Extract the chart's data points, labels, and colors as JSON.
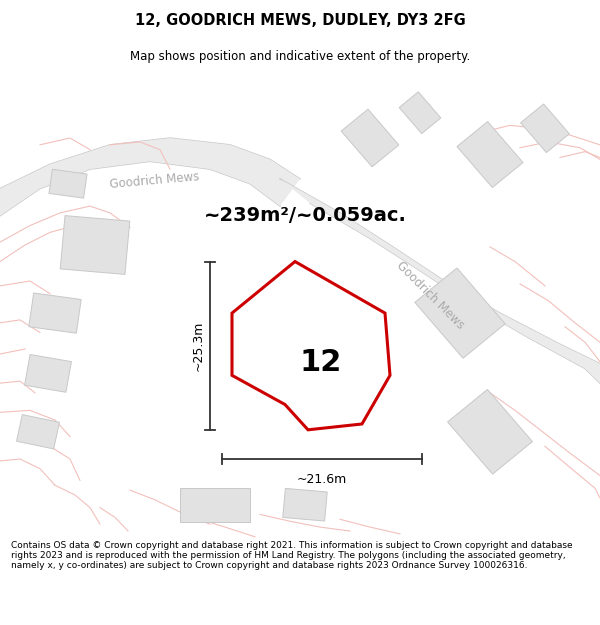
{
  "title": "12, GOODRICH MEWS, DUDLEY, DY3 2FG",
  "subtitle": "Map shows position and indicative extent of the property.",
  "area_text": "~239m²/~0.059ac.",
  "width_label": "~21.6m",
  "height_label": "~25.3m",
  "number_label": "12",
  "footer": "Contains OS data © Crown copyright and database right 2021. This information is subject to Crown copyright and database rights 2023 and is reproduced with the permission of HM Land Registry. The polygons (including the associated geometry, namely x, y co-ordinates) are subject to Crown copyright and database rights 2023 Ordnance Survey 100026316.",
  "bg_color": "#f7f7f7",
  "road_color": "#f2c0bb",
  "road_edge_color": "#d4b0aa",
  "highlight_color": "#cc0000",
  "building_fill": "#e2e2e2",
  "building_edge": "#c8c8c8",
  "street_label_color": "#aaaaaa",
  "title_fontsize": 10.5,
  "subtitle_fontsize": 8.5,
  "footer_fontsize": 6.5,
  "area_fontsize": 14,
  "number_fontsize": 22,
  "dim_fontsize": 9
}
